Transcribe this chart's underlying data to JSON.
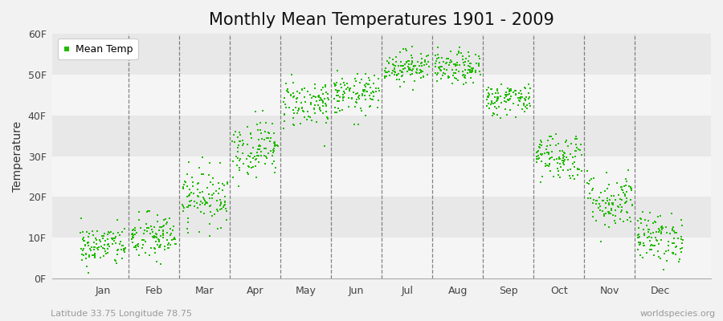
{
  "title": "Monthly Mean Temperatures 1901 - 2009",
  "ylabel": "Temperature",
  "xlabel_bottom_left": "Latitude 33.75 Longitude 78.75",
  "xlabel_bottom_right": "worldspecies.org",
  "legend_label": "Mean Temp",
  "dot_color": "#22bb00",
  "background_color": "#f2f2f2",
  "plot_bg_color": "#eeeeee",
  "band_color_light": "#f5f5f5",
  "band_color_dark": "#e8e8e8",
  "ylim": [
    0,
    60
  ],
  "ytick_labels": [
    "0F",
    "10F",
    "20F",
    "30F",
    "40F",
    "50F",
    "60F"
  ],
  "ytick_values": [
    0,
    10,
    20,
    30,
    40,
    50,
    60
  ],
  "months": [
    "Jan",
    "Feb",
    "Mar",
    "Apr",
    "May",
    "Jun",
    "Jul",
    "Aug",
    "Sep",
    "Oct",
    "Nov",
    "Dec"
  ],
  "month_mean_temps_F": [
    8.0,
    10.0,
    20.0,
    32.0,
    43.0,
    45.0,
    52.0,
    51.5,
    44.0,
    30.0,
    19.0,
    10.0
  ],
  "month_std_F": [
    2.5,
    3.0,
    3.5,
    3.5,
    3.0,
    2.5,
    2.0,
    2.0,
    2.0,
    3.0,
    3.5,
    3.0
  ],
  "n_years": 109,
  "marker_size": 3,
  "title_fontsize": 15,
  "axis_fontsize": 10,
  "tick_fontsize": 9,
  "legend_fontsize": 9,
  "dpi": 100,
  "figsize": [
    9.0,
    4.0
  ]
}
